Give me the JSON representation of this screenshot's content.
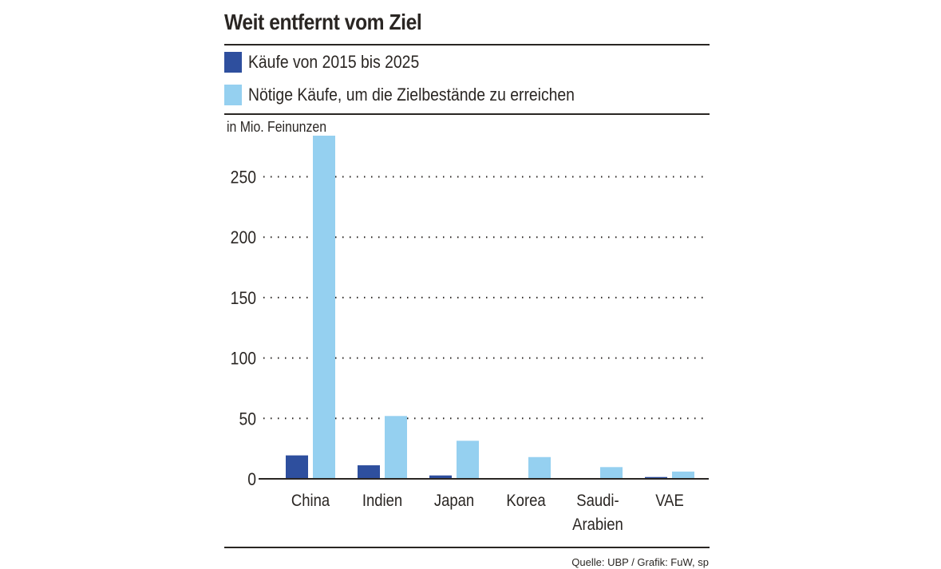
{
  "chart_data": {
    "type": "bar",
    "title": "Weit entfernt vom Ziel",
    "ylabel": "in Mio. Feinunzen",
    "xlabel": "",
    "categories": [
      "China",
      "Indien",
      "Japan",
      "Korea",
      "Saudi-Arabien",
      "VAE"
    ],
    "category_lines": [
      [
        "China"
      ],
      [
        "Indien"
      ],
      [
        "Japan"
      ],
      [
        "Korea"
      ],
      [
        "Saudi-",
        "Arabien"
      ],
      [
        "VAE"
      ]
    ],
    "series": [
      {
        "name": "Käufe von 2015 bis 2025",
        "color": "#2e4f9e",
        "values": [
          19.4,
          11.2,
          2.8,
          0,
          0,
          1.5
        ]
      },
      {
        "name": "Nötige Käufe, um die Zielbestände zu erreichen",
        "color": "#95d0f0",
        "values": [
          284,
          52,
          31.5,
          18,
          9.7,
          6
        ]
      }
    ],
    "ylim": [
      0,
      284
    ],
    "yticks": [
      0,
      50,
      100,
      150,
      200,
      250
    ],
    "grid": true,
    "legend_position": "top-left",
    "source": "Quelle: UBP / Grafik: FuW, sp"
  }
}
